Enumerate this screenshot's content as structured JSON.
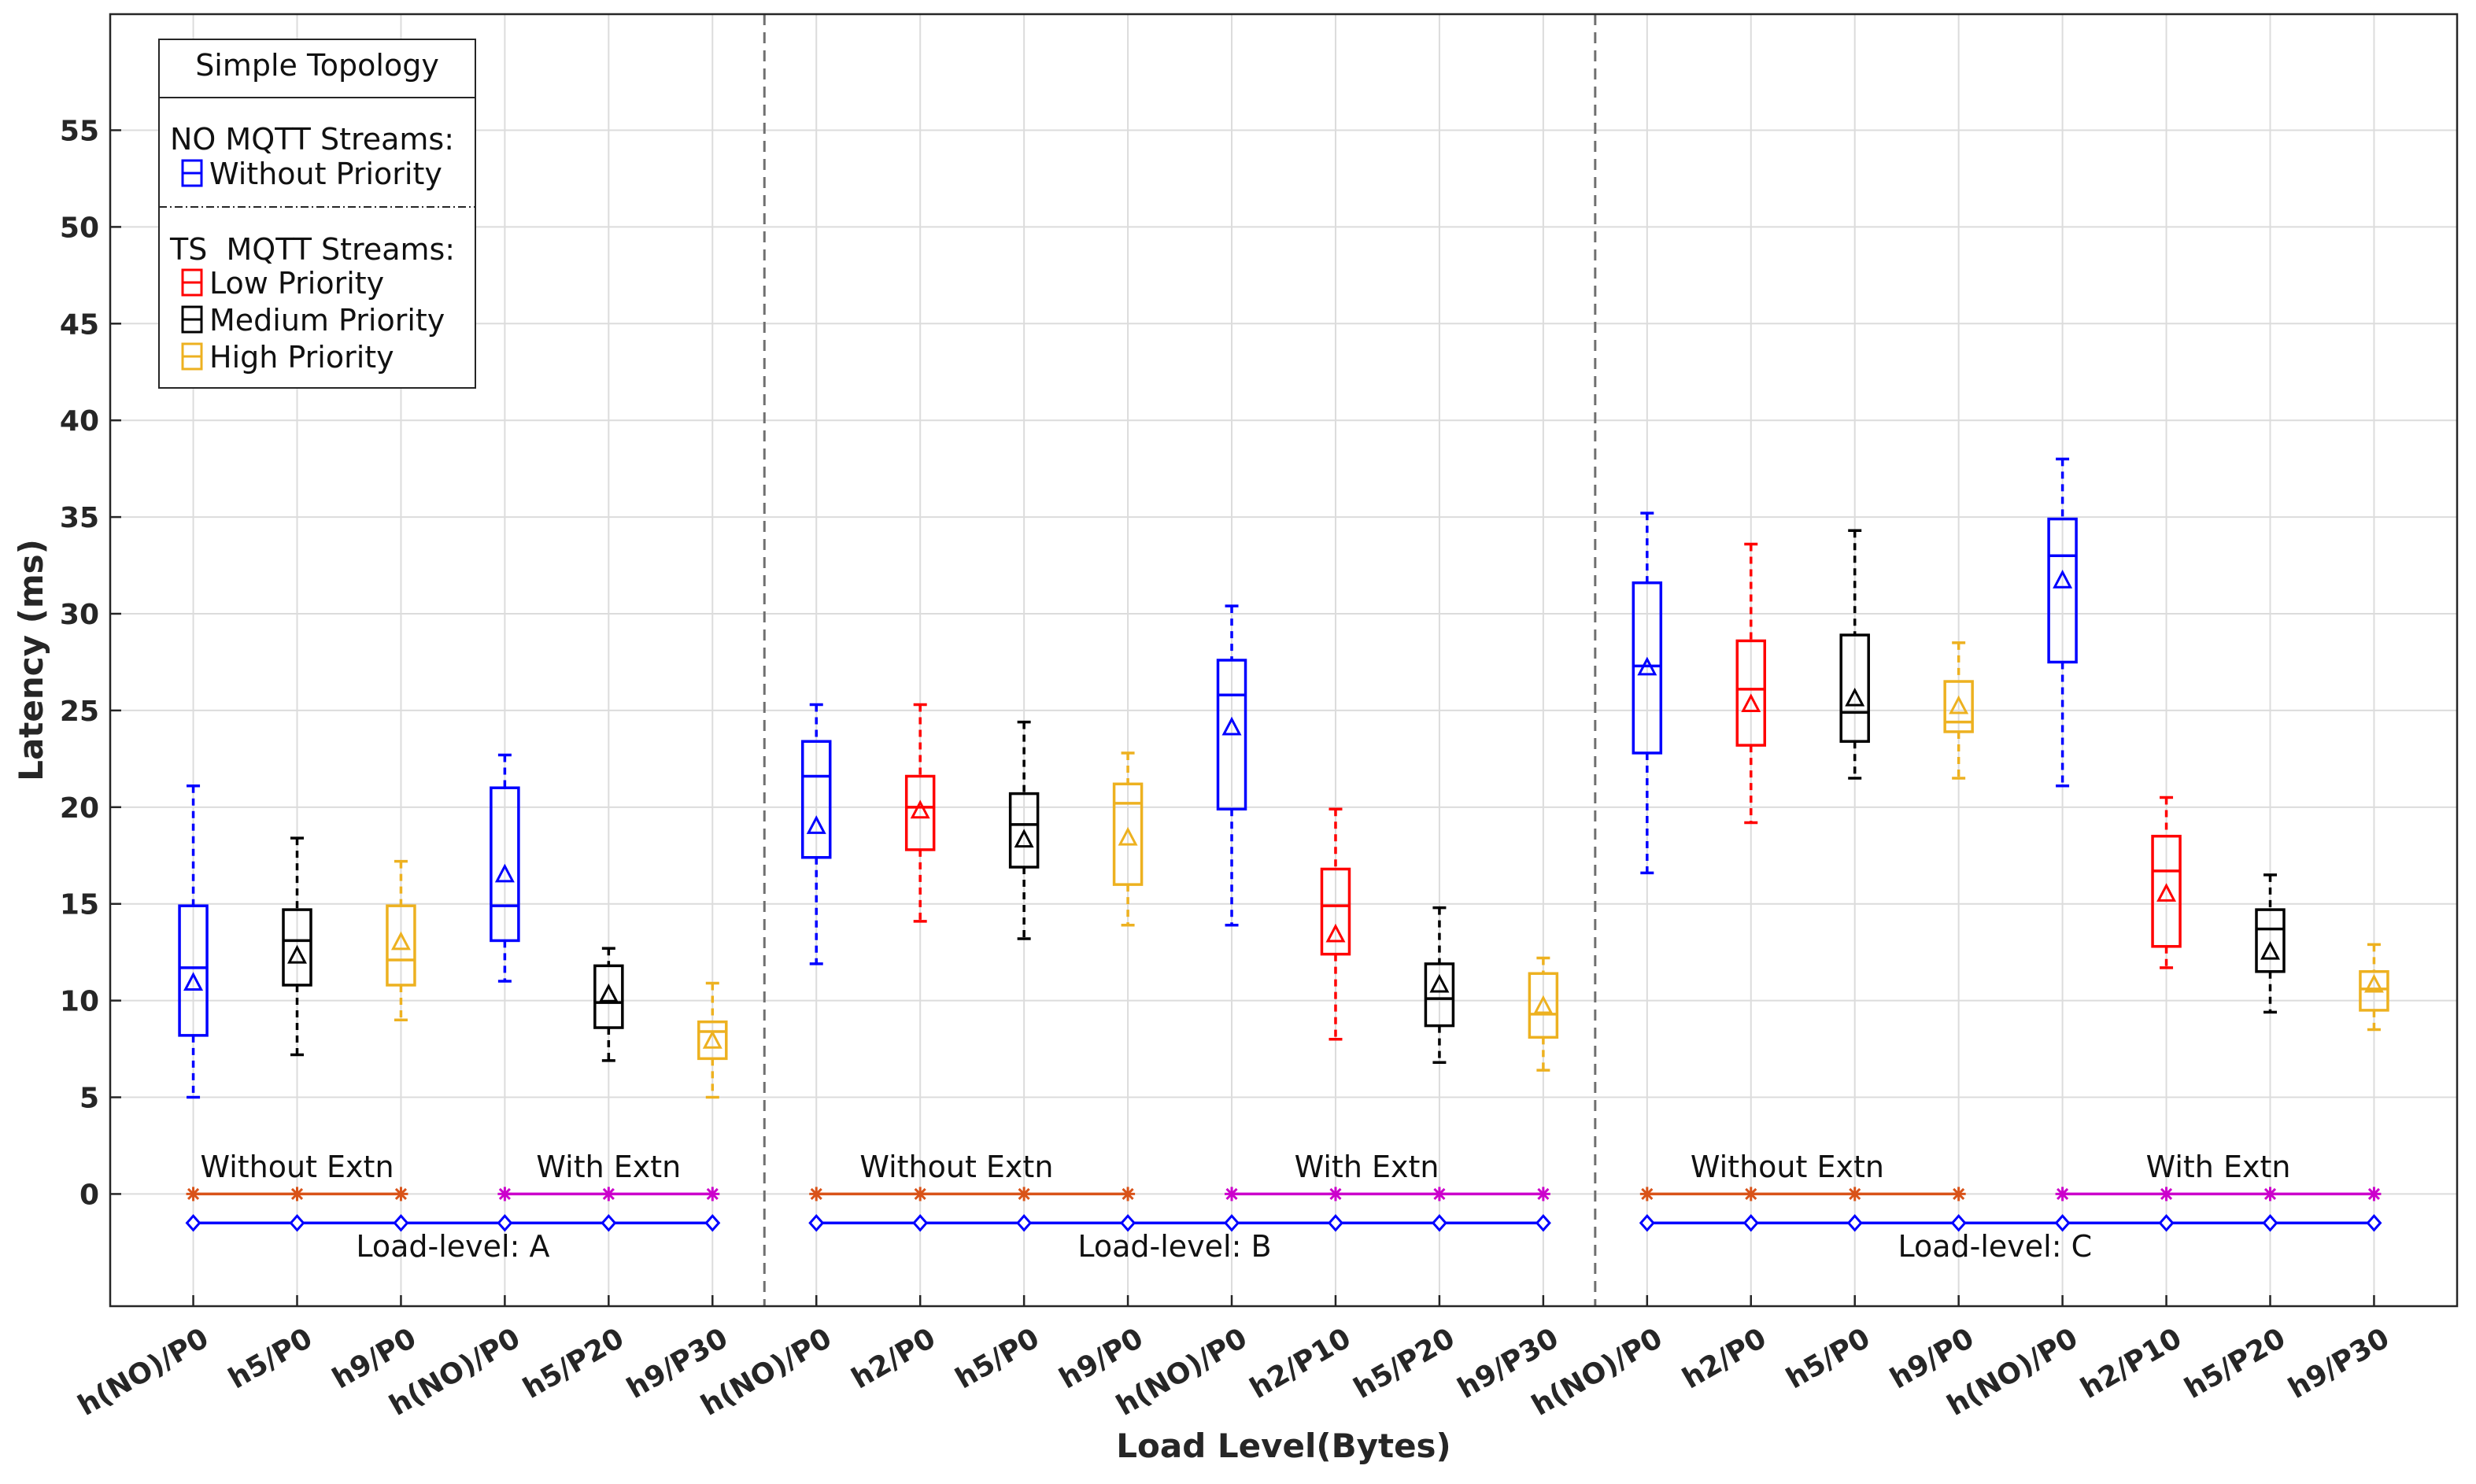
{
  "chart_data": {
    "type": "box",
    "title": "",
    "xlabel": "Load Level(Bytes)",
    "ylabel": "Latency (ms)",
    "ylim": [
      -5.8,
      61
    ],
    "yticks": [
      0,
      5,
      10,
      15,
      20,
      25,
      30,
      35,
      40,
      45,
      50,
      55
    ],
    "grid": true,
    "legend_position": "top-left",
    "legend": {
      "title": "Simple Topology",
      "group1_title": "NO MQTT Streams:",
      "group1_items": [
        {
          "label": "Without Priority",
          "color": "#0000ff"
        }
      ],
      "group2_title": "TS  MQTT Streams:",
      "group2_items": [
        {
          "label": "Low Priority",
          "color": "#ff0000"
        },
        {
          "label": "Medium Priority",
          "color": "#000000"
        },
        {
          "label": "High Priority",
          "color": "#edb120"
        }
      ]
    },
    "colors": {
      "blue": "#0000ff",
      "red": "#ff0000",
      "black": "#000000",
      "orange": "#edb120",
      "ext_off": "#d95319",
      "ext_on": "#cc00cc"
    },
    "categories": [
      "h(NO)/P0",
      "h5/P0",
      "h9/P0",
      "h(NO)/P0",
      "h5/P20",
      "h9/P30",
      "h(NO)/P0",
      "h2/P0",
      "h5/P0",
      "h9/P0",
      "h(NO)/P0",
      "h2/P10",
      "h5/P20",
      "h9/P30",
      "h(NO)/P0",
      "h2/P0",
      "h5/P0",
      "h9/P0",
      "h(NO)/P0",
      "h2/P10",
      "h5/P20",
      "h9/P30"
    ],
    "boxes": [
      {
        "color": "blue",
        "whisker_low": 5.0,
        "q1": 8.2,
        "median": 11.7,
        "q3": 14.9,
        "whisker_high": 21.1,
        "mean": 10.9
      },
      {
        "color": "black",
        "whisker_low": 7.2,
        "q1": 10.8,
        "median": 13.1,
        "q3": 14.7,
        "whisker_high": 18.4,
        "mean": 12.3
      },
      {
        "color": "orange",
        "whisker_low": 9.0,
        "q1": 10.8,
        "median": 12.1,
        "q3": 14.9,
        "whisker_high": 17.2,
        "mean": 13.0
      },
      {
        "color": "blue",
        "whisker_low": 11.0,
        "q1": 13.1,
        "median": 14.9,
        "q3": 21.0,
        "whisker_high": 22.7,
        "mean": 16.5
      },
      {
        "color": "black",
        "whisker_low": 6.9,
        "q1": 8.6,
        "median": 9.9,
        "q3": 11.8,
        "whisker_high": 12.7,
        "mean": 10.3
      },
      {
        "color": "orange",
        "whisker_low": 5.0,
        "q1": 7.0,
        "median": 8.4,
        "q3": 8.9,
        "whisker_high": 10.9,
        "mean": 7.9
      },
      {
        "color": "blue",
        "whisker_low": 11.9,
        "q1": 17.4,
        "median": 21.6,
        "q3": 23.4,
        "whisker_high": 25.3,
        "mean": 19.0
      },
      {
        "color": "red",
        "whisker_low": 14.1,
        "q1": 17.8,
        "median": 20.0,
        "q3": 21.6,
        "whisker_high": 25.3,
        "mean": 19.8
      },
      {
        "color": "black",
        "whisker_low": 13.2,
        "q1": 16.9,
        "median": 19.1,
        "q3": 20.7,
        "whisker_high": 24.4,
        "mean": 18.3
      },
      {
        "color": "orange",
        "whisker_low": 13.9,
        "q1": 16.0,
        "median": 20.2,
        "q3": 21.2,
        "whisker_high": 22.8,
        "mean": 18.4
      },
      {
        "color": "blue",
        "whisker_low": 13.9,
        "q1": 19.9,
        "median": 25.8,
        "q3": 27.6,
        "whisker_high": 30.4,
        "mean": 24.1
      },
      {
        "color": "red",
        "whisker_low": 8.0,
        "q1": 12.4,
        "median": 14.9,
        "q3": 16.8,
        "whisker_high": 19.9,
        "mean": 13.4
      },
      {
        "color": "black",
        "whisker_low": 6.8,
        "q1": 8.7,
        "median": 10.1,
        "q3": 11.9,
        "whisker_high": 14.8,
        "mean": 10.8
      },
      {
        "color": "orange",
        "whisker_low": 6.4,
        "q1": 8.1,
        "median": 9.3,
        "q3": 11.4,
        "whisker_high": 12.2,
        "mean": 9.7
      },
      {
        "color": "blue",
        "whisker_low": 16.6,
        "q1": 22.8,
        "median": 27.3,
        "q3": 31.6,
        "whisker_high": 35.2,
        "mean": 27.2
      },
      {
        "color": "red",
        "whisker_low": 19.2,
        "q1": 23.2,
        "median": 26.1,
        "q3": 28.6,
        "whisker_high": 33.6,
        "mean": 25.3
      },
      {
        "color": "black",
        "whisker_low": 21.5,
        "q1": 23.4,
        "median": 24.9,
        "q3": 28.9,
        "whisker_high": 34.3,
        "mean": 25.6
      },
      {
        "color": "orange",
        "whisker_low": 21.5,
        "q1": 23.9,
        "median": 24.4,
        "q3": 26.5,
        "whisker_high": 28.5,
        "mean": 25.2
      },
      {
        "color": "blue",
        "whisker_low": 21.1,
        "q1": 27.5,
        "median": 33.0,
        "q3": 34.9,
        "whisker_high": 38.0,
        "mean": 31.7
      },
      {
        "color": "red",
        "whisker_low": 11.7,
        "q1": 12.8,
        "median": 16.7,
        "q3": 18.5,
        "whisker_high": 20.5,
        "mean": 15.5
      },
      {
        "color": "black",
        "whisker_low": 9.4,
        "q1": 11.5,
        "median": 13.7,
        "q3": 14.7,
        "whisker_high": 16.5,
        "mean": 12.5
      },
      {
        "color": "orange",
        "whisker_low": 8.5,
        "q1": 9.5,
        "median": 10.6,
        "q3": 11.5,
        "whisker_high": 12.9,
        "mean": 10.8
      }
    ],
    "group_dividers_after": [
      6,
      14
    ],
    "ext_lines": [
      {
        "color": "ext_off",
        "marker": "*",
        "from": 1,
        "to": 3,
        "y": 0
      },
      {
        "color": "ext_on",
        "marker": "*",
        "from": 4,
        "to": 6,
        "y": 0
      },
      {
        "color": "ext_off",
        "marker": "*",
        "from": 7,
        "to": 10,
        "y": 0
      },
      {
        "color": "ext_on",
        "marker": "*",
        "from": 11,
        "to": 14,
        "y": 0
      },
      {
        "color": "ext_off",
        "marker": "*",
        "from": 15,
        "to": 18,
        "y": 0
      },
      {
        "color": "ext_on",
        "marker": "*",
        "from": 19,
        "to": 22,
        "y": 0
      }
    ],
    "load_lines": [
      {
        "color": "blue",
        "marker": "diamond",
        "from": 1,
        "to": 6,
        "y": -1.5
      },
      {
        "color": "blue",
        "marker": "diamond",
        "from": 7,
        "to": 14,
        "y": -1.5
      },
      {
        "color": "blue",
        "marker": "diamond",
        "from": 15,
        "to": 22,
        "y": -1.5
      }
    ],
    "annotations": [
      {
        "text": "Without Extn",
        "x": 2.0,
        "y": 1.4
      },
      {
        "text": "With Extn",
        "x": 5.0,
        "y": 1.4
      },
      {
        "text": "Load-level: A",
        "x": 3.5,
        "y": -2.7
      },
      {
        "text": "Without Extn",
        "x": 8.35,
        "y": 1.4
      },
      {
        "text": "With Extn",
        "x": 12.3,
        "y": 1.4
      },
      {
        "text": "Load-level: B",
        "x": 10.45,
        "y": -2.7
      },
      {
        "text": "Without Extn",
        "x": 16.35,
        "y": 1.4
      },
      {
        "text": "With Extn",
        "x": 20.5,
        "y": 1.4
      },
      {
        "text": "Load-level: C",
        "x": 18.35,
        "y": -2.7
      }
    ]
  }
}
